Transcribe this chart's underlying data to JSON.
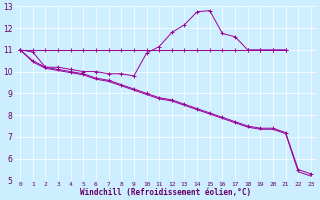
{
  "line1_x": [
    0,
    1,
    2,
    3,
    4,
    5,
    6,
    7,
    8,
    9,
    10,
    11,
    12,
    13,
    14,
    15,
    16,
    17,
    18,
    19,
    20,
    21
  ],
  "line1_y": [
    11.0,
    10.9,
    10.2,
    10.2,
    10.1,
    10.0,
    10.0,
    9.9,
    9.9,
    9.8,
    10.85,
    11.15,
    11.8,
    12.15,
    12.75,
    12.8,
    11.75,
    11.6,
    11.0,
    11.0,
    11.0,
    11.0
  ],
  "line2_x": [
    0,
    1,
    2,
    3,
    4,
    5,
    6,
    7,
    8,
    9,
    10,
    11,
    12,
    13,
    14,
    15,
    16,
    17,
    18,
    19,
    20,
    21
  ],
  "line2_y": [
    11.0,
    11.0,
    11.0,
    11.0,
    11.0,
    11.0,
    11.0,
    11.0,
    11.0,
    11.0,
    11.0,
    11.0,
    11.0,
    11.0,
    11.0,
    11.0,
    11.0,
    11.0,
    11.0,
    11.0,
    11.0,
    11.0
  ],
  "line3_x": [
    0,
    1,
    2,
    3,
    4,
    5,
    6,
    7,
    8,
    9,
    10,
    11,
    12,
    13,
    14,
    15,
    16,
    17,
    18,
    19,
    20,
    21,
    22,
    23
  ],
  "line3_y": [
    11.0,
    10.5,
    10.2,
    10.1,
    10.0,
    9.9,
    9.7,
    9.6,
    9.4,
    9.2,
    9.0,
    8.8,
    8.7,
    8.5,
    8.3,
    8.1,
    7.9,
    7.7,
    7.5,
    7.4,
    7.4,
    7.2,
    5.5,
    5.3
  ],
  "line4_x": [
    0,
    1,
    2,
    3,
    4,
    5,
    6,
    7,
    8,
    9,
    10,
    11,
    12,
    13,
    14,
    15,
    16,
    17,
    18,
    19,
    20,
    21,
    22,
    23
  ],
  "line4_y": [
    11.0,
    10.45,
    10.15,
    10.05,
    9.95,
    9.85,
    9.65,
    9.55,
    9.35,
    9.15,
    8.95,
    8.75,
    8.65,
    8.45,
    8.25,
    8.05,
    7.85,
    7.65,
    7.45,
    7.35,
    7.35,
    7.15,
    5.4,
    5.2
  ],
  "color": "#990099",
  "bg_color": "#cceeff",
  "grid_color": "#ffffff",
  "xlabel": "Windchill (Refroidissement éolien,°C)",
  "xlabel_color": "#660066",
  "xlim": [
    -0.5,
    23.5
  ],
  "ylim": [
    5,
    13
  ],
  "yticks": [
    5,
    6,
    7,
    8,
    9,
    10,
    11,
    12,
    13
  ],
  "xticks": [
    0,
    1,
    2,
    3,
    4,
    5,
    6,
    7,
    8,
    9,
    10,
    11,
    12,
    13,
    14,
    15,
    16,
    17,
    18,
    19,
    20,
    21,
    22,
    23
  ]
}
